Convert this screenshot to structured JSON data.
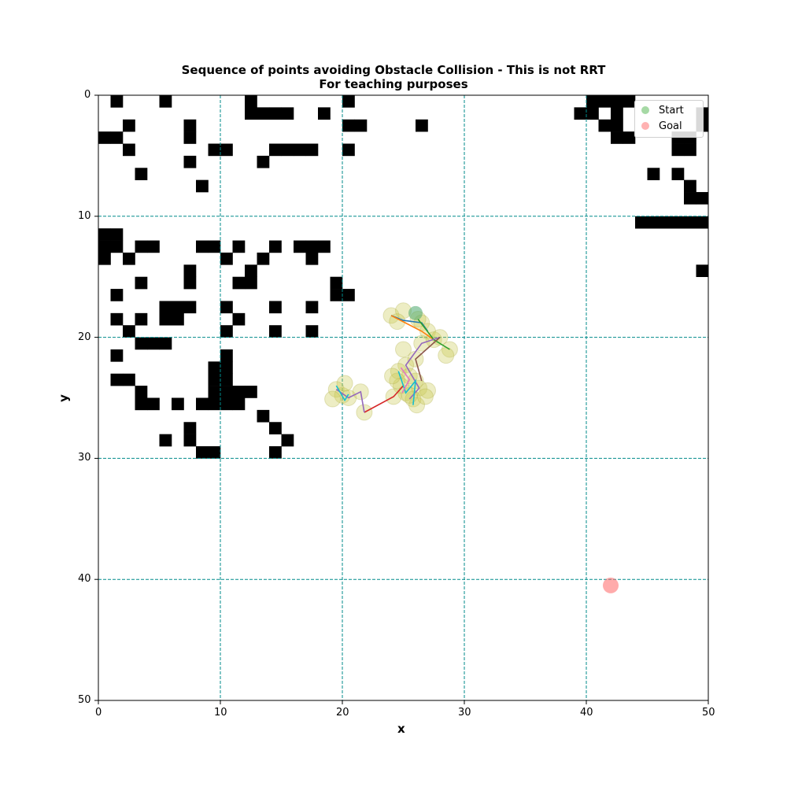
{
  "chart": {
    "title_line1": "Sequence of points avoiding Obstacle Collision - This is not RRT",
    "title_line2": "For teaching purposes",
    "xlabel": "x",
    "ylabel": "y",
    "legend": {
      "start": "Start",
      "goal": "Goal"
    }
  },
  "chart_data": {
    "type": "scatter",
    "title": "Sequence of points avoiding Obstacle Collision - This is not RRT\nFor teaching purposes",
    "xlabel": "x",
    "ylabel": "y",
    "xlim": [
      0,
      50
    ],
    "ylim": [
      50,
      0
    ],
    "xticks": [
      0,
      10,
      20,
      30,
      40,
      50
    ],
    "yticks": [
      0,
      10,
      20,
      30,
      40,
      50
    ],
    "grid": {
      "type": "dashed",
      "color": "#008b8b",
      "spacing": 10
    },
    "legend_position": "top-right",
    "colors": {
      "start": "#2ca02c",
      "goal": "#ff6666",
      "samples": "#cccc55",
      "obstacle": "#000000"
    },
    "start": [
      26,
      18
    ],
    "goal": [
      42,
      40.5
    ],
    "obstacle_grid_encoding": "each row string has 50 chars, '1' = obstacle cell (x col, y row)",
    "obstacle_grid": [
      "01000100000010000000100000000000000000001111000000",
      "00000000000011110010000000000000000000011010000001",
      "00100001000000000000110000100000000000000110000001",
      "11000001000000000000000000000000000000000011000110",
      "00100000011000111100100000000000000000000000000110",
      "00000001000001000000000000000000000000000000000000",
      "00010000000000000000000000000000000000000000010100",
      "00000000100000000000000000000000000000000000000010",
      "00000000000000000000000000000000000000000000000011",
      "00000000000000000000000000000000000000000000000000",
      "00000000000000000000000000000000000000000000111111",
      "11000000000000000000000000000000000000000000000000",
      "11011000110100101110000000000000000000000000000000",
      "10100000001001000100000000000000000000000000000000",
      "00000001000010000000000000000000000000000000000001",
      "00010001000110000001000000000000000000000000000000",
      "01000000000000000001100000000000000000000000000000",
      "00000111001000100100000000000000000000000000000000",
      "01010110000100000000000000000000000000000000000000",
      "00100000001000100100000000000000000000000000000000",
      "00011100000000000000000000000000000000000000000000",
      "01000000001000000000000000000000000000000000000000",
      "00000000011000000000000000000000000000000000000000",
      "01100000011000000000000000000000000000000000000000",
      "00010000011110000000000000000000000000000000000000",
      "00011010111100000000000000000000000000000000000000",
      "00000000000001000000000000000000000000000000000000",
      "00000001000000100000000000000000000000000000000000",
      "00000101000000010000000000000000000000000000000000",
      "00000000110000100000000000000000000000000000000000",
      "00000000000000000000000000000000000000000000000000"
    ]
  }
}
